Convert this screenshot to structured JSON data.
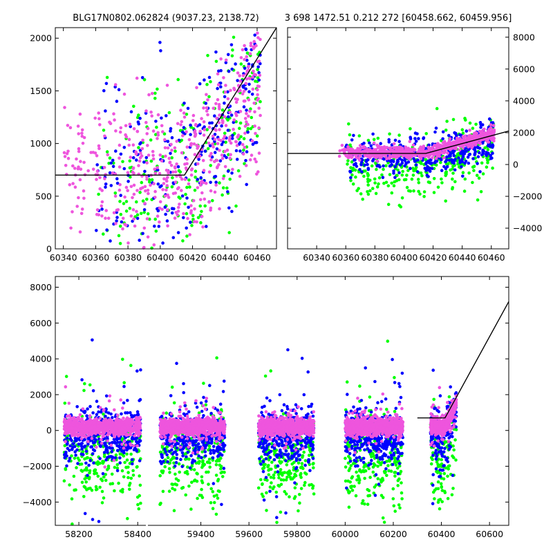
{
  "colors": {
    "green": "#00ff00",
    "blue": "#0000ff",
    "magenta": "#ee55dd",
    "model": "#000000"
  },
  "chart_data": [
    {
      "id": "top-left",
      "type": "scatter",
      "title": "BLG17N0802.062824 (9037.23, 2138.72)",
      "xlabel": "",
      "ylabel": "",
      "xlim": [
        60335,
        60472
      ],
      "ylim": [
        0,
        2100
      ],
      "xticks": [
        60340,
        60360,
        60380,
        60400,
        60420,
        60440,
        60460
      ],
      "xtick_labels": [
        "60340",
        "60360",
        "60380",
        "60400",
        "60420",
        "60440",
        "60460"
      ],
      "yticks": [
        0,
        500,
        1000,
        1500,
        2000
      ],
      "ytick_labels": [
        "0",
        "500",
        "1000",
        "1500",
        "2000"
      ],
      "ytick_side": "left",
      "grid": false,
      "model_line": {
        "x": [
          60335,
          60415,
          60472
        ],
        "y": [
          700,
          700,
          2100
        ]
      },
      "series": [
        {
          "color": "green",
          "x_range": [
            60360,
            60462
          ],
          "y_center": 650,
          "y_spread": 900,
          "n": 220
        },
        {
          "color": "blue",
          "x_range": [
            60360,
            60462
          ],
          "y_center": 700,
          "y_spread": 900,
          "n": 260
        },
        {
          "color": "magenta",
          "x_range": [
            60340,
            60462
          ],
          "y_center": 720,
          "y_spread": 800,
          "n": 500
        }
      ]
    },
    {
      "id": "top-right",
      "type": "scatter",
      "title": "3 698 1472.51 0.212 272 [60458.662, 60459.956]",
      "xlabel": "",
      "ylabel": "",
      "xlim": [
        60320,
        60472
      ],
      "ylim": [
        -5300,
        8600
      ],
      "xticks": [
        60340,
        60360,
        60380,
        60400,
        60420,
        60440,
        60460
      ],
      "xtick_labels": [
        "60340",
        "60360",
        "60380",
        "60400",
        "60420",
        "60440",
        "60460"
      ],
      "yticks": [
        -4000,
        -2000,
        0,
        2000,
        4000,
        6000,
        8000
      ],
      "ytick_labels": [
        "−4000",
        "−2000",
        "0",
        "2000",
        "4000",
        "6000",
        "8000"
      ],
      "ytick_side": "right",
      "grid": false,
      "model_line": {
        "x": [
          60320,
          60415,
          60472
        ],
        "y": [
          700,
          700,
          2100
        ]
      },
      "series": [
        {
          "color": "green",
          "x_range": [
            60360,
            60462
          ],
          "y_center": -300,
          "y_spread": 2600,
          "n": 320
        },
        {
          "color": "blue",
          "x_range": [
            60360,
            60462
          ],
          "y_center": 500,
          "y_spread": 1500,
          "n": 420
        },
        {
          "color": "magenta",
          "x_range": [
            60355,
            60462
          ],
          "y_center": 750,
          "y_spread": 500,
          "n": 700
        }
      ]
    },
    {
      "id": "bottom",
      "type": "scatter",
      "title": "",
      "xlabel": "",
      "ylabel": "",
      "xlim": [
        58120,
        60680
      ],
      "ylim": [
        -5300,
        8600
      ],
      "xticks": [
        58200,
        58400,
        59400,
        59600,
        59800,
        60000,
        60200,
        60400,
        60600
      ],
      "xtick_labels": [
        "58200",
        "58400",
        "59400",
        "59600",
        "59800",
        "60000",
        "60200",
        "60400",
        "60600"
      ],
      "yticks": [
        -4000,
        -2000,
        0,
        2000,
        4000,
        6000,
        8000
      ],
      "ytick_labels": [
        "−4000",
        "−2000",
        "0",
        "2000",
        "4000",
        "6000",
        "8000"
      ],
      "ytick_side": "left",
      "grid": false,
      "axis_break": {
        "after_x": 58400,
        "before_x": 59400,
        "display_gap_x": [
          58420,
          58430
        ]
      },
      "model_line": {
        "x": [
          60300,
          60415,
          60680
        ],
        "y": [
          700,
          700,
          7200
        ]
      },
      "seasons": [
        {
          "x_range": [
            58150,
            58410
          ]
        },
        {
          "x_range": [
            59230,
            59500
          ]
        },
        {
          "x_range": [
            59640,
            59870
          ]
        },
        {
          "x_range": [
            60000,
            60240
          ]
        },
        {
          "x_range": [
            60355,
            60462
          ]
        }
      ],
      "series": [
        {
          "color": "green",
          "y_center": -1600,
          "y_spread": 2800,
          "n_per_season": 240
        },
        {
          "color": "blue",
          "y_center": -300,
          "y_spread": 1600,
          "n_per_season": 380
        },
        {
          "color": "magenta",
          "y_center": 200,
          "y_spread": 500,
          "n_per_season": 900
        }
      ]
    }
  ]
}
